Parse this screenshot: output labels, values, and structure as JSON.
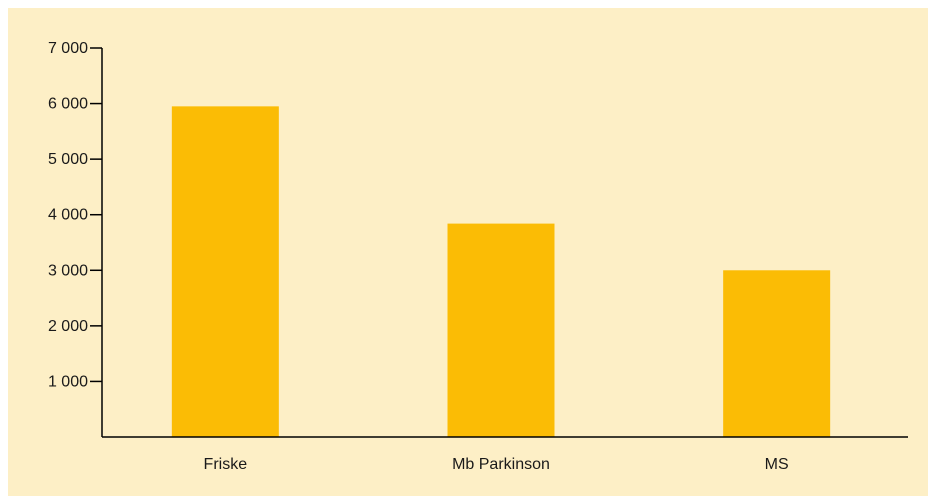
{
  "chart_data": {
    "type": "bar",
    "title": "",
    "xlabel": "",
    "ylabel": "",
    "categories": [
      "Friske",
      "Mb Parkinson",
      "MS"
    ],
    "values": [
      5950,
      3840,
      3000
    ],
    "ylim": [
      0,
      7000
    ],
    "yticks": [
      1000,
      2000,
      3000,
      4000,
      5000,
      6000,
      7000
    ],
    "ytick_labels": [
      "1 000",
      "2 000",
      "3 000",
      "4 000",
      "5 000",
      "6 000",
      "7 000"
    ],
    "grid": false,
    "bar_color": "#fbbc05",
    "background_color": "#fdefc6"
  }
}
